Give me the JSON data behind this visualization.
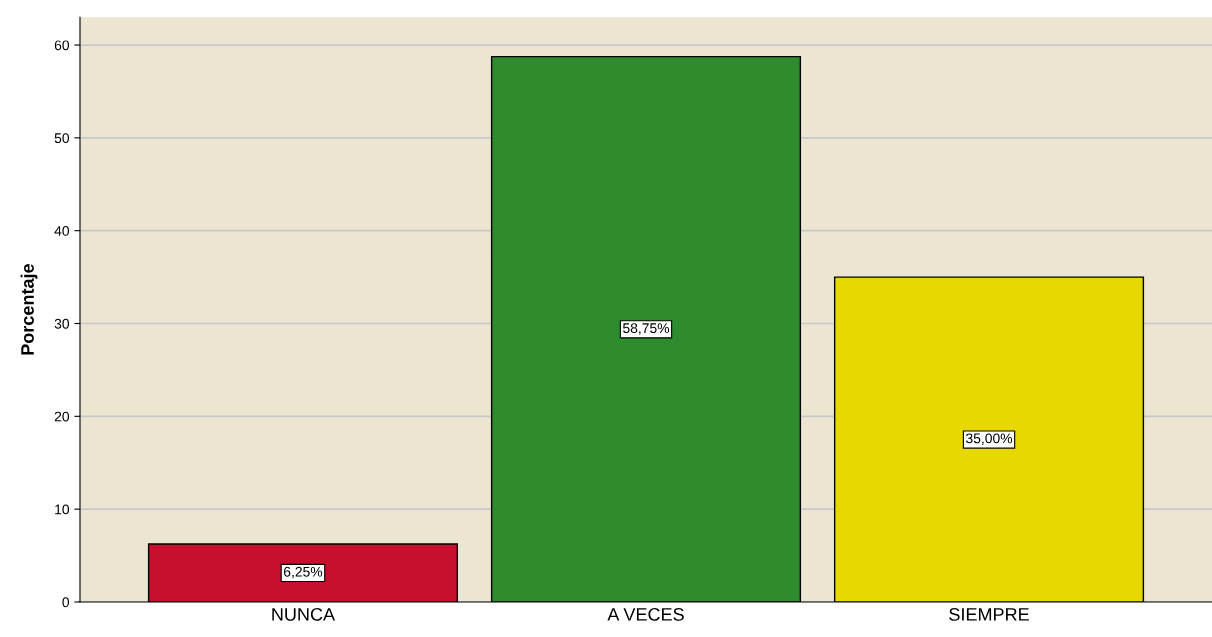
{
  "chart_data": {
    "type": "bar",
    "ylabel": "Porcentaje",
    "categories": [
      "NUNCA",
      "A VECES",
      "SIEMPRE"
    ],
    "values": [
      6.25,
      58.75,
      35.0
    ],
    "colors": [
      "#c8102e",
      "#2e8b2e",
      "#e6d800"
    ],
    "value_labels": [
      "6,25%",
      "58,75%",
      "35,00%"
    ],
    "ylim": [
      0,
      63
    ],
    "yticks": [
      0,
      10,
      20,
      30,
      40,
      50,
      60
    ],
    "grid": "y"
  }
}
